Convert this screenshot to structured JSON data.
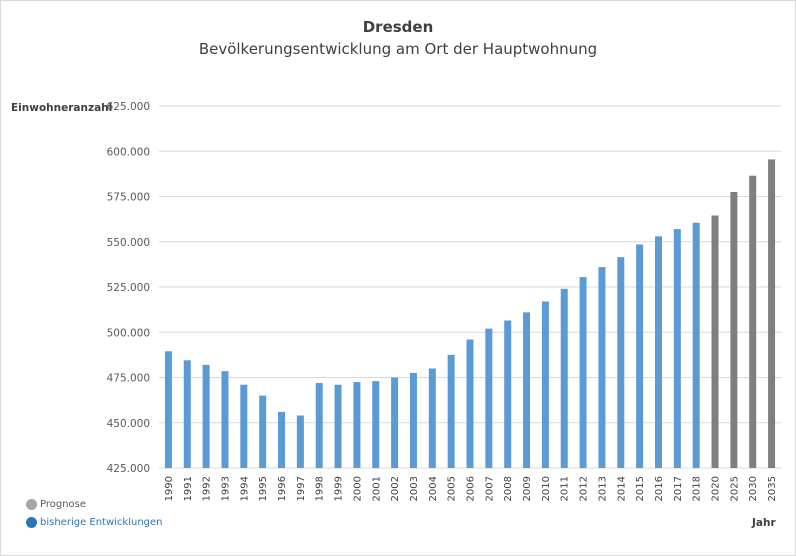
{
  "chart_data": {
    "type": "bar",
    "title": "Dresden",
    "subtitle": "Bevölkerungsentwicklung am Ort der Hauptwohnung",
    "ylabel": "Einwohneranzahl",
    "xlabel": "Jahr",
    "ylim": [
      425000,
      625000
    ],
    "yticks": [
      425000,
      450000,
      475000,
      500000,
      525000,
      550000,
      575000,
      600000,
      625000
    ],
    "ytick_labels": [
      "425.000",
      "450.000",
      "475.000",
      "500.000",
      "525.000",
      "550.000",
      "575.000",
      "600.000",
      "625.000"
    ],
    "grid": true,
    "legend_position": "bottom-left",
    "categories": [
      "1990",
      "1991",
      "1992",
      "1993",
      "1994",
      "1995",
      "1996",
      "1997",
      "1998",
      "1999",
      "2000",
      "2001",
      "2002",
      "2003",
      "2004",
      "2005",
      "2006",
      "2007",
      "2008",
      "2009",
      "2010",
      "2011",
      "2012",
      "2013",
      "2014",
      "2015",
      "2016",
      "2017",
      "2018",
      "2020",
      "2025",
      "2030",
      "2035"
    ],
    "values": [
      489500,
      484500,
      482000,
      478500,
      471000,
      465000,
      456000,
      454000,
      472000,
      471000,
      472500,
      473000,
      475000,
      477500,
      480000,
      487500,
      496000,
      502000,
      506500,
      511000,
      517000,
      524000,
      530500,
      536000,
      541500,
      548500,
      553000,
      557000,
      560500,
      564500,
      577500,
      586500,
      595500
    ],
    "kinds": [
      "h",
      "h",
      "h",
      "h",
      "h",
      "h",
      "h",
      "h",
      "h",
      "h",
      "h",
      "h",
      "h",
      "h",
      "h",
      "h",
      "h",
      "h",
      "h",
      "h",
      "h",
      "h",
      "h",
      "h",
      "h",
      "h",
      "h",
      "h",
      "h",
      "p",
      "p",
      "p",
      "p"
    ],
    "legend": [
      {
        "label": "Prognose",
        "color": "#a6a6a6",
        "text_color": "#595959"
      },
      {
        "label": "bisherige Entwicklungen",
        "color": "#2e75b6",
        "text_color": "#2e75b6"
      }
    ],
    "colors": {
      "historical": "#5b9bd5",
      "forecast": "#7f7f7f",
      "grid": "#d9d9d9",
      "tick_text": "#595959"
    }
  }
}
